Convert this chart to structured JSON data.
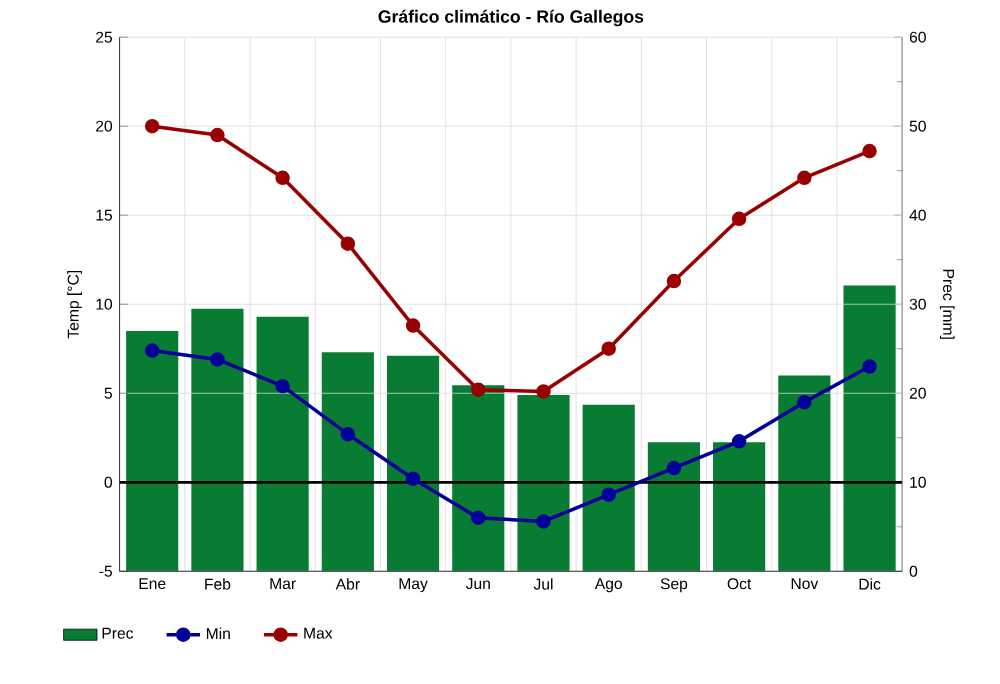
{
  "chart_data": {
    "type": "line",
    "title": "Gráfico climático - Río Gallegos",
    "ylabel": "Temp [°C]",
    "y2label": "Prec [mm]",
    "categories": [
      "Ene",
      "Feb",
      "Mar",
      "Abr",
      "May",
      "Jun",
      "Jul",
      "Ago",
      "Sep",
      "Oct",
      "Nov",
      "Dic"
    ],
    "series": [
      {
        "name": "Prec",
        "type": "bar",
        "axis": "y2",
        "color": "#077c32",
        "values": [
          27,
          29.5,
          28.6,
          24.6,
          24.2,
          20.9,
          19.8,
          18.7,
          14.5,
          14.5,
          22,
          32.1
        ]
      },
      {
        "name": "Min",
        "color": "#000099",
        "values": [
          7.4,
          6.9,
          5.4,
          2.7,
          0.2,
          -2.0,
          -2.2,
          -0.7,
          0.8,
          2.3,
          4.5,
          6.5
        ]
      },
      {
        "name": "Max",
        "color": "#990000",
        "values": [
          20,
          19.5,
          17.1,
          13.4,
          8.8,
          5.2,
          5.1,
          7.5,
          11.3,
          14.8,
          17.1,
          18.6
        ]
      }
    ],
    "ylim": [
      -5,
      25
    ],
    "yticks": [
      -5,
      0,
      5,
      10,
      15,
      20,
      25
    ],
    "y2lim": [
      0,
      60
    ],
    "y2ticks": [
      0,
      10,
      20,
      30,
      40,
      50,
      60
    ],
    "ref_lines": [
      {
        "axis": "y",
        "value": 0,
        "color": "#000000"
      }
    ],
    "grid": true,
    "legend": "bottom",
    "marker": "circle"
  }
}
